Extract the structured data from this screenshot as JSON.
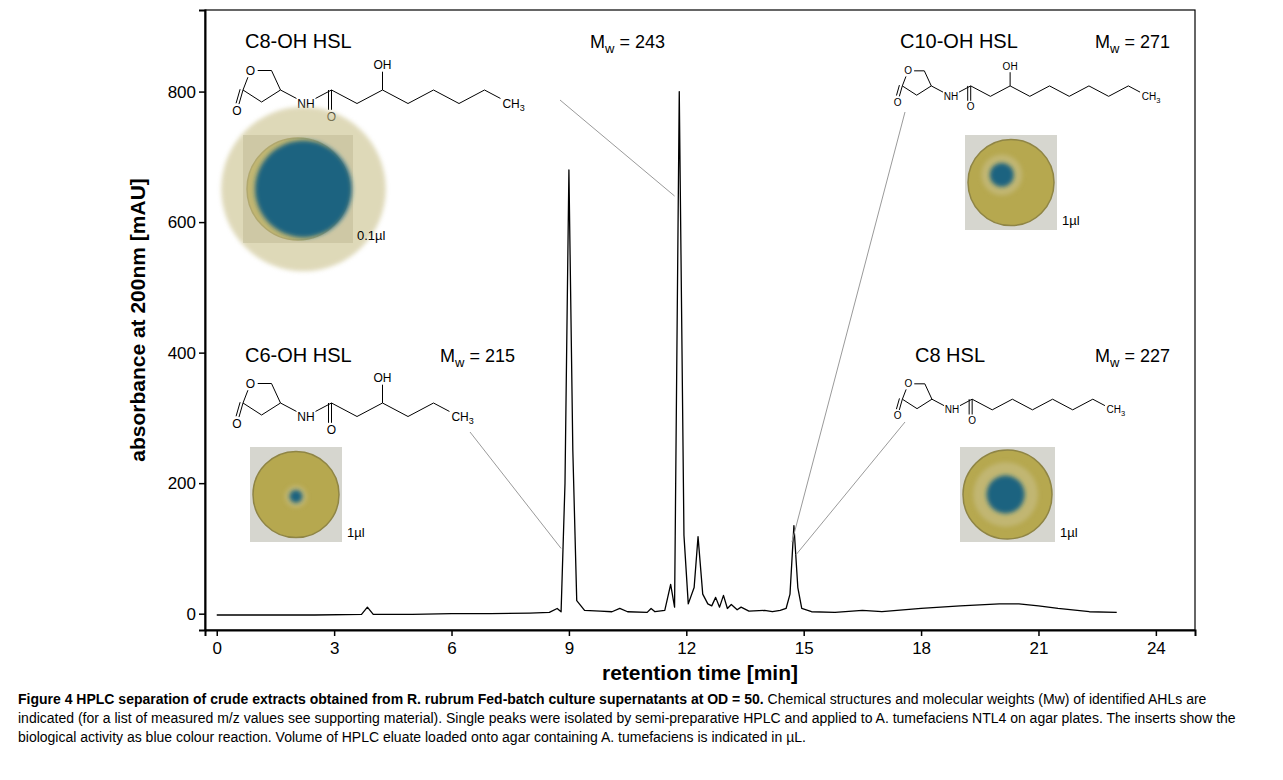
{
  "chart_data": {
    "type": "line",
    "x_label": "retention time [min]",
    "y_label": "absorbance at 200nm [mAU]",
    "xlim": [
      -0.3,
      25
    ],
    "ylim": [
      -25,
      925
    ],
    "xticks": [
      0,
      3,
      6,
      9,
      12,
      15,
      18,
      21,
      24
    ],
    "yticks": [
      0,
      200,
      400,
      600,
      800
    ],
    "x": [
      0,
      2.5,
      3.7,
      3.85,
      4.0,
      5,
      6,
      7,
      8,
      8.5,
      8.7,
      8.8,
      8.9,
      9.0,
      9.1,
      9.2,
      9.4,
      9.8,
      10.1,
      10.3,
      10.5,
      11.0,
      11.1,
      11.2,
      11.45,
      11.6,
      11.7,
      11.82,
      11.94,
      12.05,
      12.2,
      12.3,
      12.42,
      12.55,
      12.65,
      12.75,
      12.85,
      12.95,
      13.05,
      13.15,
      13.3,
      13.4,
      13.6,
      14.0,
      14.2,
      14.4,
      14.55,
      14.65,
      14.75,
      14.85,
      14.95,
      15.2,
      15.8,
      16.5,
      17,
      18,
      19,
      20,
      20.5,
      21,
      21.5,
      22.3,
      23
    ],
    "series": [
      {
        "color": "#000000",
        "values": [
          -2,
          -2,
          -1,
          10,
          -1,
          -1,
          0,
          0,
          1,
          2,
          8,
          3,
          200,
          680,
          250,
          20,
          5,
          4,
          3,
          8,
          3,
          2,
          8,
          3,
          5,
          45,
          10,
          800,
          120,
          15,
          40,
          118,
          30,
          15,
          12,
          25,
          10,
          28,
          8,
          14,
          6,
          10,
          4,
          5,
          3,
          5,
          8,
          30,
          135,
          40,
          8,
          3,
          2,
          5,
          3,
          8,
          12,
          15,
          15,
          12,
          8,
          3,
          2
        ]
      }
    ],
    "mw_text": {
      "symbol": "M",
      "subscript": "w",
      "sep": " = "
    },
    "structure_text": {
      "ring_o": "O",
      "carbonyl_o": "O",
      "amide": "NH",
      "hydroxyl": "OH",
      "methyl": "CH3"
    },
    "annotations": [
      {
        "label": "C8-OH HSL",
        "mw": 243,
        "volume_label": "0.1µl",
        "x": 11.7,
        "y": 640
      },
      {
        "label": "C6-OH HSL",
        "mw": 215,
        "volume_label": "1µl",
        "x": 8.8,
        "y": 100
      },
      {
        "label": "C10-OH HSL",
        "mw": 271,
        "volume_label": "1µl",
        "x": 14.7,
        "y": 110
      },
      {
        "label": "C8 HSL",
        "mw": 227,
        "volume_label": "1µl",
        "x": 14.8,
        "y": 90
      }
    ],
    "caption_title": "Figure 4 HPLC separation of crude extracts obtained from R. rubrum Fed-batch culture supernatants at OD = 50.",
    "caption": "Chemical structures and molecular weights (Mw) of identified AHLs are indicated (for a list of measured m/z values see supporting material). Single peaks were isolated by semi-preparative HPLC and applied to A. tumefaciens NTL4 on agar plates. The inserts show the biological activity as blue colour reaction. Volume of HPLC eluate loaded onto agar containing A. tumefaciens is indicated in µL."
  }
}
